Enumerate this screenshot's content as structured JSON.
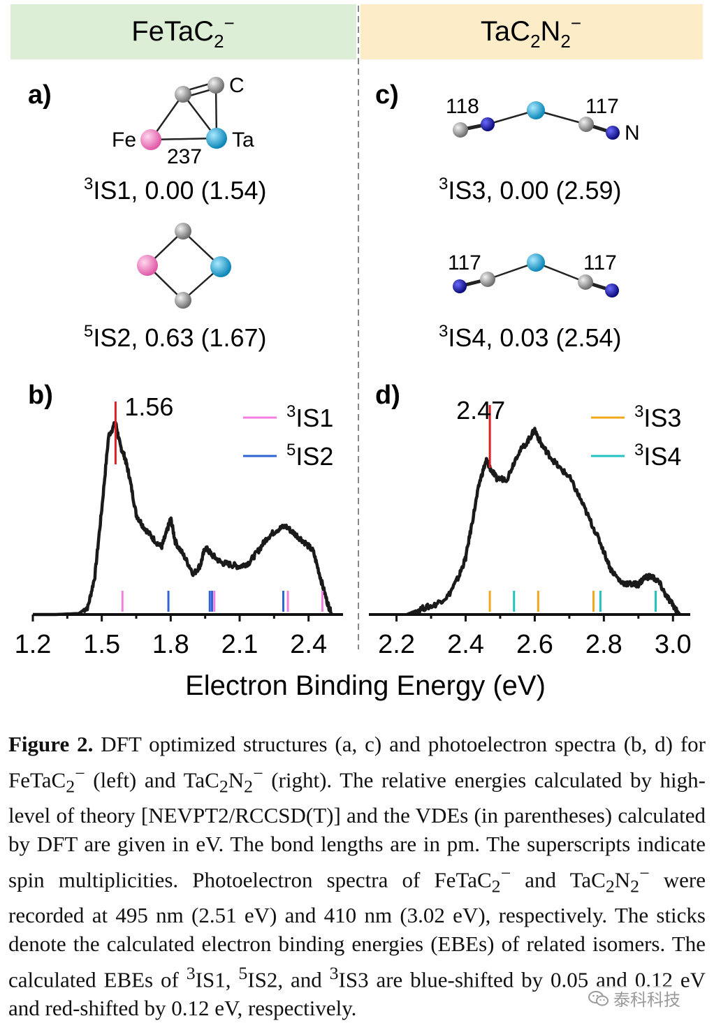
{
  "panels": {
    "left_header": {
      "main": "FeTaC",
      "sub": "2",
      "sup": "−"
    },
    "right_header": {
      "main1": "TaC",
      "sub1": "2",
      "main2": "N",
      "sub2": "2",
      "sup": "−"
    },
    "a": {
      "label": "a)",
      "atoms": {
        "c": "C",
        "fe": "Fe",
        "ta": "Ta"
      },
      "bond": "237",
      "isomer1": {
        "sup": "3",
        "text": "IS1, 0.00 (1.54)"
      },
      "isomer2": {
        "sup": "5",
        "text": "IS2, 0.63 (1.67)"
      }
    },
    "c": {
      "label": "c)",
      "bond_left1": "118",
      "bond_right1": "117",
      "atom_n": "N",
      "isomer3": {
        "sup": "3",
        "text": "IS3, 0.00 (2.59)"
      },
      "bond_left2": "117",
      "bond_right2": "117",
      "isomer4": {
        "sup": "3",
        "text": "IS4, 0.03 (2.54)"
      }
    }
  },
  "chart_data": [
    {
      "type": "line",
      "panel": "b)",
      "xlabel": "Electron Binding Energy (eV)",
      "xlim": [
        1.2,
        2.55
      ],
      "xticks": [
        "1.2",
        "1.5",
        "1.8",
        "2.1",
        "2.4"
      ],
      "tick_values": [
        1.2,
        1.5,
        1.8,
        2.1,
        2.4
      ],
      "peak_label": "1.56",
      "peak_x": 1.56,
      "legend": [
        {
          "sup": "3",
          "name": "IS1",
          "color": "#f27fe0"
        },
        {
          "sup": "5",
          "name": "IS2",
          "color": "#2f63d6"
        }
      ],
      "spectrum": {
        "x": [
          1.2,
          1.3,
          1.4,
          1.44,
          1.47,
          1.5,
          1.53,
          1.56,
          1.58,
          1.6,
          1.62,
          1.65,
          1.68,
          1.72,
          1.76,
          1.78,
          1.8,
          1.82,
          1.86,
          1.9,
          1.93,
          1.95,
          1.98,
          2.02,
          2.06,
          2.1,
          2.14,
          2.18,
          2.22,
          2.26,
          2.3,
          2.34,
          2.38,
          2.42,
          2.45,
          2.48,
          2.5
        ],
        "y": [
          0.0,
          0.0,
          0.005,
          0.04,
          0.2,
          0.55,
          0.93,
          1.0,
          0.88,
          0.82,
          0.72,
          0.52,
          0.46,
          0.4,
          0.35,
          0.42,
          0.5,
          0.38,
          0.3,
          0.21,
          0.26,
          0.35,
          0.31,
          0.27,
          0.26,
          0.25,
          0.27,
          0.33,
          0.4,
          0.44,
          0.46,
          0.42,
          0.38,
          0.33,
          0.2,
          0.07,
          0.0
        ]
      },
      "sticks": [
        {
          "x": 1.59,
          "color": "#f27fe0"
        },
        {
          "x": 1.79,
          "color": "#2f63d6"
        },
        {
          "x": 1.97,
          "color": "#2f63d6"
        },
        {
          "x": 1.98,
          "color": "#2f63d6"
        },
        {
          "x": 1.99,
          "color": "#f27fe0"
        },
        {
          "x": 2.29,
          "color": "#2f63d6"
        },
        {
          "x": 2.31,
          "color": "#f27fe0"
        },
        {
          "x": 2.46,
          "color": "#f27fe0"
        }
      ]
    },
    {
      "type": "line",
      "panel": "d)",
      "xlabel": "Electron Binding Energy (eV)",
      "xlim": [
        2.12,
        3.05
      ],
      "xticks": [
        "2.2",
        "2.4",
        "2.6",
        "2.8",
        "3.0"
      ],
      "tick_values": [
        2.2,
        2.4,
        2.6,
        2.8,
        3.0
      ],
      "peak_label": "2.47",
      "peak_x": 2.47,
      "legend": [
        {
          "sup": "3",
          "name": "IS3",
          "color": "#f2a81d"
        },
        {
          "sup": "3",
          "name": "IS4",
          "color": "#23c2c2"
        }
      ],
      "spectrum": {
        "x": [
          2.23,
          2.27,
          2.31,
          2.35,
          2.38,
          2.4,
          2.42,
          2.44,
          2.46,
          2.47,
          2.49,
          2.52,
          2.55,
          2.58,
          2.6,
          2.62,
          2.64,
          2.67,
          2.7,
          2.73,
          2.76,
          2.79,
          2.82,
          2.85,
          2.88,
          2.9,
          2.92,
          2.94,
          2.96,
          2.98,
          3.0,
          3.02
        ],
        "y": [
          0.0,
          0.03,
          0.05,
          0.1,
          0.2,
          0.3,
          0.5,
          0.7,
          0.82,
          0.78,
          0.72,
          0.72,
          0.85,
          0.92,
          0.98,
          0.9,
          0.85,
          0.78,
          0.73,
          0.62,
          0.5,
          0.38,
          0.24,
          0.17,
          0.16,
          0.16,
          0.2,
          0.2,
          0.17,
          0.1,
          0.05,
          0.0
        ]
      },
      "sticks": [
        {
          "x": 2.47,
          "color": "#f2a81d"
        },
        {
          "x": 2.54,
          "color": "#23c2c2"
        },
        {
          "x": 2.61,
          "color": "#f2a81d"
        },
        {
          "x": 2.77,
          "color": "#f2a81d"
        },
        {
          "x": 2.79,
          "color": "#23c2c2"
        },
        {
          "x": 2.95,
          "color": "#23c2c2"
        }
      ]
    }
  ],
  "caption": {
    "figure_label": "Figure 2.",
    "part1": " DFT optimized structures (a, c) and photoelectron spectra (b, d) for FeTaC",
    "s1": "2",
    "p1": "−",
    "part2": " (left) and TaC",
    "s2": "2",
    "part2b": "N",
    "s3": "2",
    "p2": "−",
    "part3": " (right). The relative energies calculated by high-level of theory [NEVPT2/RCCSD(T)] and the VDEs (in parentheses) calculated by DFT are given in eV. The bond lengths are in pm. The superscripts indicate spin multiplicities. Photoelectron spectra of FeTaC",
    "s4": "2",
    "p3": "−",
    "part4": " and TaC",
    "s5": "2",
    "part4b": "N",
    "s6": "2",
    "p4": "−",
    "part5": " were recorded at 495 nm (2.51 eV) and 410 nm (3.02 eV), respectively. The sticks denote the calculated electron binding energies (EBEs) of related isomers. The calculated EBEs of ",
    "m1": "3",
    "part6": "IS1, ",
    "m2": "5",
    "part7": "IS2, and ",
    "m3": "3",
    "part8": "IS3 are blue-shifted by 0.05 and 0.12 eV and red-shifted by 0.12 eV, respectively."
  },
  "watermark": {
    "text": "泰科科技",
    "icon": "wechat-icon"
  },
  "colors": {
    "left_header_bg": "#dcefd6",
    "right_header_bg": "#fcedc8",
    "fe": "#f07cc0",
    "ta": "#1aa3d6",
    "c": "#8a8a8a",
    "n": "#1a1aa0",
    "peak_mark": "#e02020"
  }
}
